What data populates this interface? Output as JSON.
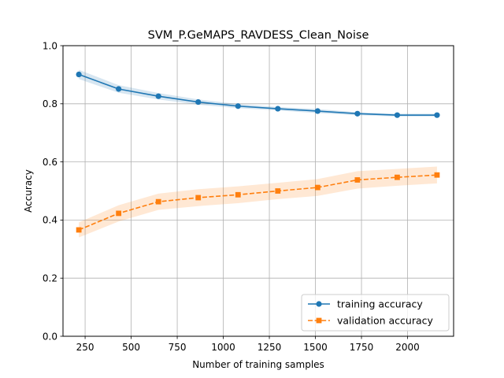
{
  "chart_data": {
    "type": "line",
    "title": "SVM_P.GeMAPS_RAVDESS_Clean_Noise",
    "xlabel": "Number of training samples",
    "ylabel": "Accuracy",
    "xlim": [
      130,
      2250
    ],
    "ylim": [
      0.0,
      1.0
    ],
    "xticks": [
      250,
      500,
      750,
      1000,
      1250,
      1500,
      1750,
      2000
    ],
    "yticks": [
      0.0,
      0.2,
      0.4,
      0.6,
      0.8,
      1.0
    ],
    "grid": true,
    "legend_position": "lower-right",
    "x": [
      216,
      432,
      648,
      864,
      1080,
      1296,
      1512,
      1728,
      1944,
      2160
    ],
    "series": [
      {
        "name": "training accuracy",
        "color": "#1f77b4",
        "marker": "circle",
        "linestyle": "solid",
        "values": [
          0.901,
          0.851,
          0.826,
          0.806,
          0.792,
          0.783,
          0.775,
          0.766,
          0.761,
          0.761
        ],
        "band_lower": [
          0.885,
          0.838,
          0.815,
          0.797,
          0.785,
          0.777,
          0.768,
          0.761,
          0.756,
          0.756
        ],
        "band_upper": [
          0.917,
          0.864,
          0.837,
          0.815,
          0.799,
          0.789,
          0.782,
          0.771,
          0.766,
          0.766
        ]
      },
      {
        "name": "validation accuracy",
        "color": "#ff7f0e",
        "marker": "square",
        "linestyle": "dashed",
        "values": [
          0.366,
          0.423,
          0.463,
          0.477,
          0.487,
          0.5,
          0.512,
          0.538,
          0.547,
          0.555
        ],
        "band_lower": [
          0.34,
          0.395,
          0.435,
          0.448,
          0.458,
          0.472,
          0.483,
          0.508,
          0.518,
          0.526
        ],
        "band_upper": [
          0.392,
          0.451,
          0.491,
          0.506,
          0.516,
          0.528,
          0.541,
          0.568,
          0.576,
          0.584
        ]
      }
    ]
  }
}
